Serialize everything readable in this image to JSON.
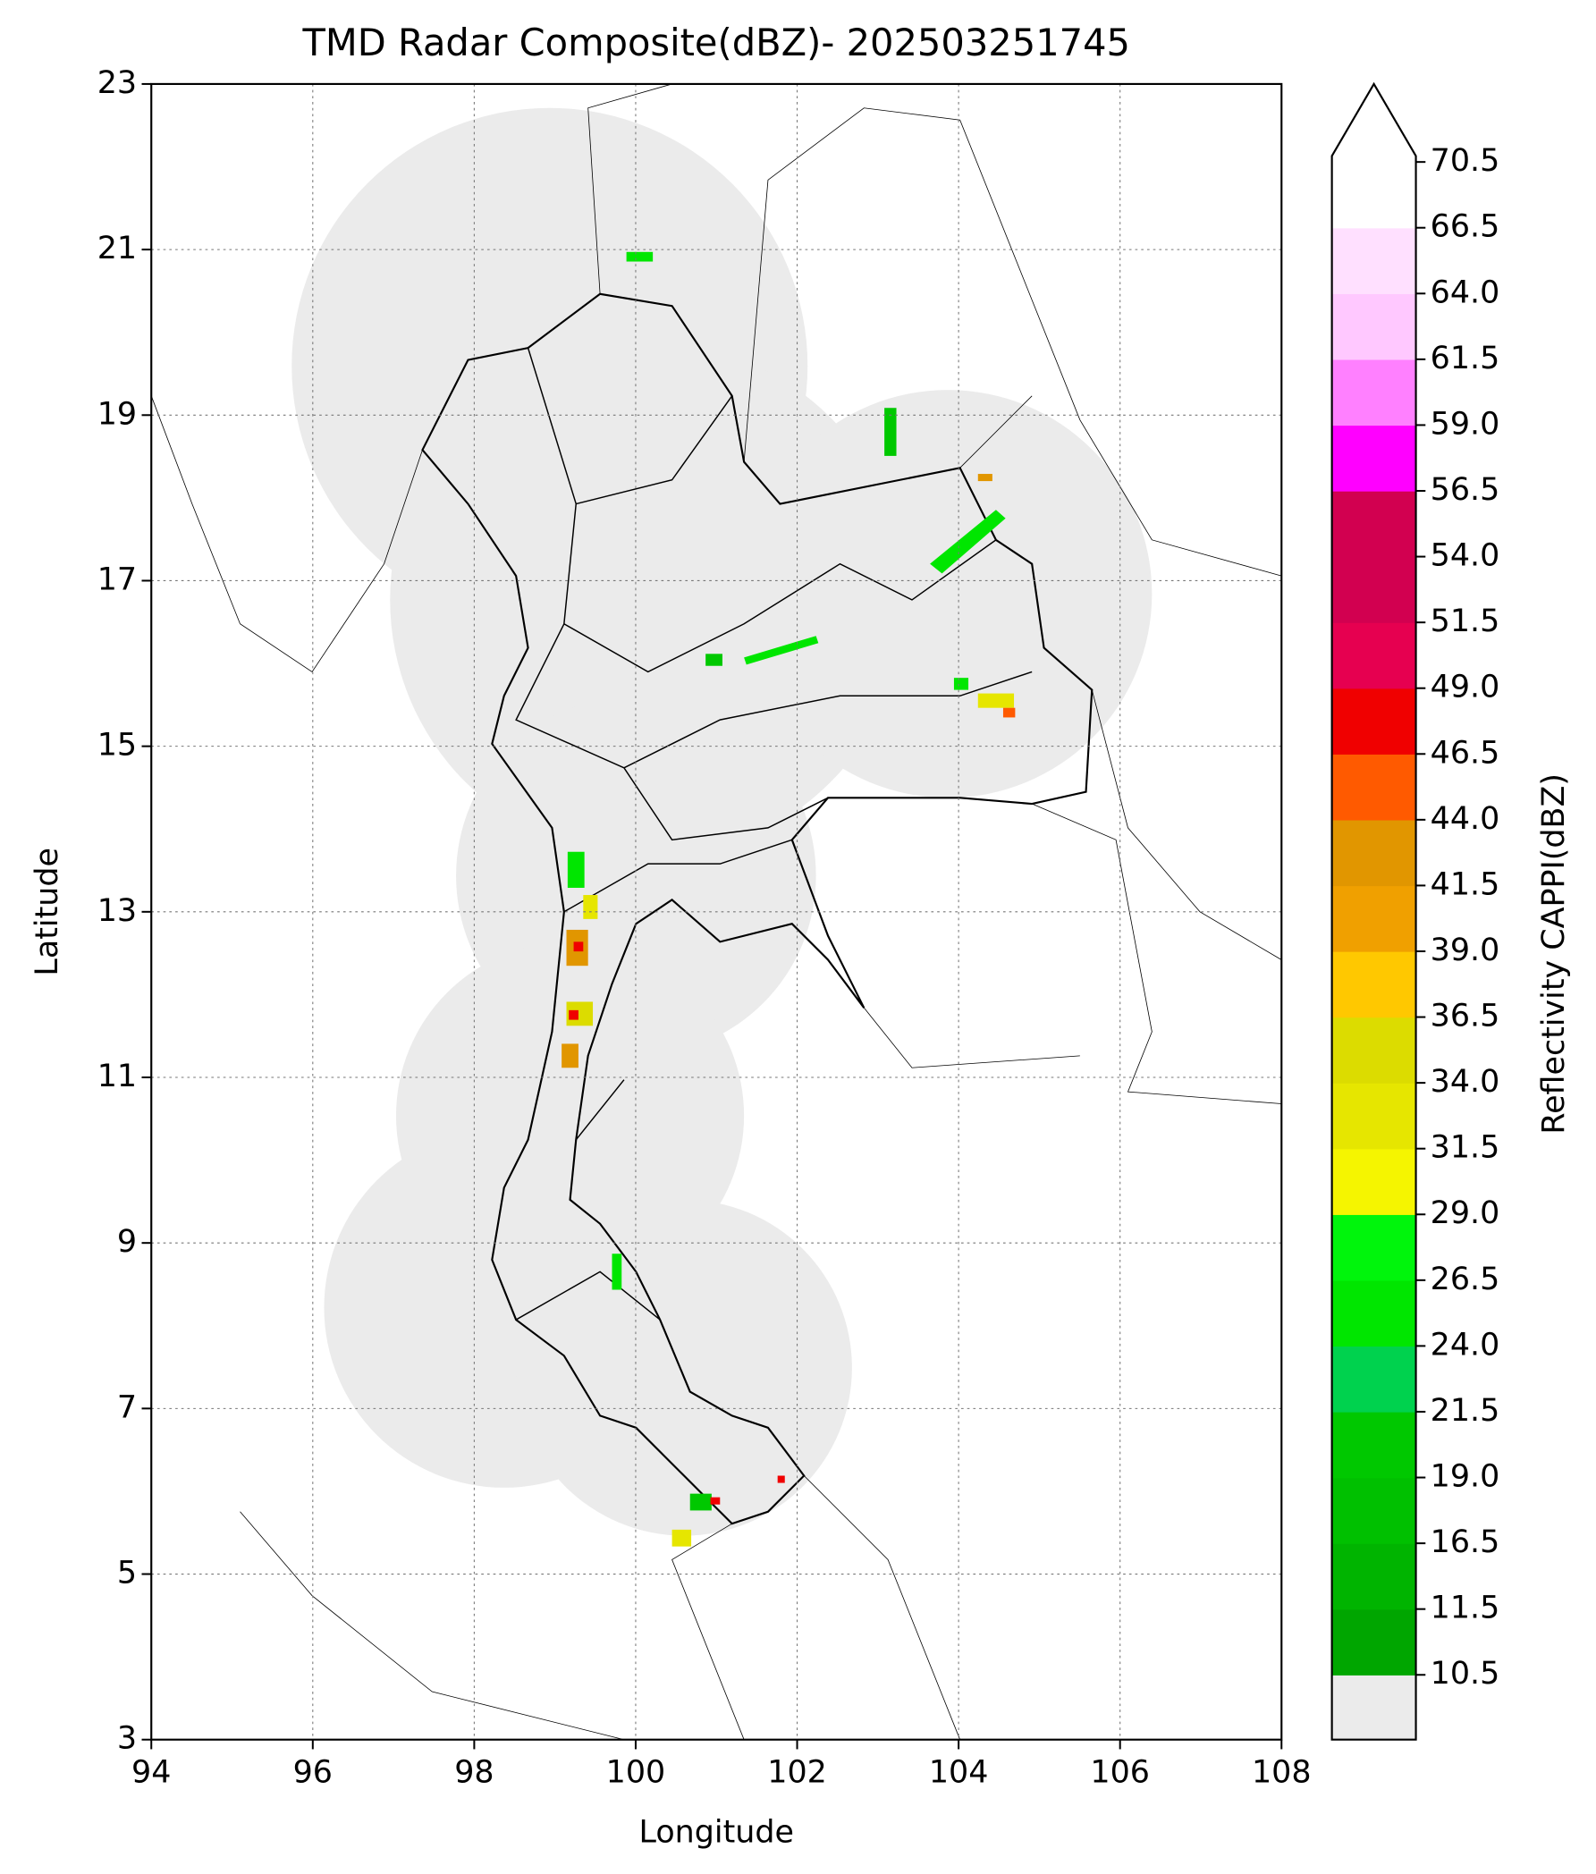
{
  "chart_data": {
    "type": "map",
    "title": "TMD Radar Composite(dBZ)- 202503251745",
    "x_label": "Longitude",
    "y_label": "Latitude",
    "xlim": [
      94,
      108
    ],
    "ylim": [
      3,
      23
    ],
    "xticks": [
      94,
      96,
      98,
      100,
      102,
      104,
      106,
      108
    ],
    "yticks": [
      3,
      5,
      7,
      9,
      11,
      13,
      15,
      17,
      19,
      21,
      23
    ],
    "grid": true,
    "colorbar": {
      "label": "Reflectivity CAPPI(dBZ)",
      "under_color": "#ebebeb",
      "ticks": [
        10.5,
        11.5,
        16.5,
        {
          "value": 19,
          "label": "19.0"
        },
        21.5,
        {
          "value": 24,
          "label": "24.0"
        },
        26.5,
        {
          "value": 29,
          "label": "29.0"
        },
        31.5,
        {
          "value": 34,
          "label": "34.0"
        },
        36.5,
        {
          "value": 39,
          "label": "39.0"
        },
        41.5,
        {
          "value": 44,
          "label": "44.0"
        },
        46.5,
        {
          "value": 49,
          "label": "49.0"
        },
        51.5,
        {
          "value": 54,
          "label": "54.0"
        },
        56.5,
        {
          "value": 59,
          "label": "59.0"
        },
        61.5,
        {
          "value": 64,
          "label": "64.0"
        },
        66.5,
        70.5
      ],
      "colors": [
        "#00a600",
        "#00b400",
        "#00c000",
        "#00c800",
        "#00d24e",
        "#00e600",
        "#00f50c",
        "#f5f500",
        "#e6e600",
        "#dcdc00",
        "#ffc800",
        "#f0a000",
        "#e19600",
        "#ff5a00",
        "#f00000",
        "#e60050",
        "#d20050",
        "#d20050",
        "#ff00ff",
        "#ff80ff",
        "#ffc8ff",
        "#ffe0ff",
        "#ffffff"
      ]
    }
  }
}
